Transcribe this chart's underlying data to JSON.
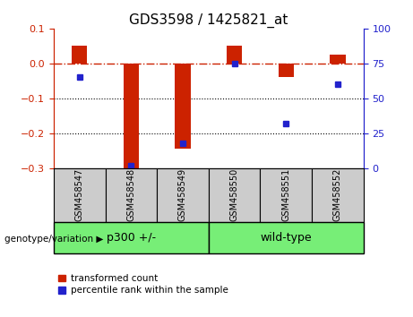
{
  "title": "GDS3598 / 1425821_at",
  "categories": [
    "GSM458547",
    "GSM458548",
    "GSM458549",
    "GSM458550",
    "GSM458551",
    "GSM458552"
  ],
  "red_values": [
    0.05,
    -0.3,
    -0.245,
    0.05,
    -0.038,
    0.025
  ],
  "blue_values": [
    65,
    2,
    18,
    75,
    32,
    60
  ],
  "ylim_left": [
    -0.3,
    0.1
  ],
  "ylim_right": [
    0,
    100
  ],
  "yticks_left": [
    0.1,
    0.0,
    -0.1,
    -0.2,
    -0.3
  ],
  "yticks_right": [
    100,
    75,
    50,
    25,
    0
  ],
  "group1_label": "p300 +/-",
  "group1_indices": [
    0,
    1,
    2
  ],
  "group2_label": "wild-type",
  "group2_indices": [
    3,
    4,
    5
  ],
  "group_row_label": "genotype/variation",
  "legend_red": "transformed count",
  "legend_blue": "percentile rank within the sample",
  "red_color": "#cc2200",
  "blue_color": "#2222cc",
  "group_bg_color": "#77ee77",
  "label_bg_color": "#cccccc",
  "bar_width": 0.3,
  "title_fontsize": 11,
  "tick_fontsize": 8,
  "label_fontsize": 7,
  "group_fontsize": 9,
  "legend_fontsize": 7.5
}
